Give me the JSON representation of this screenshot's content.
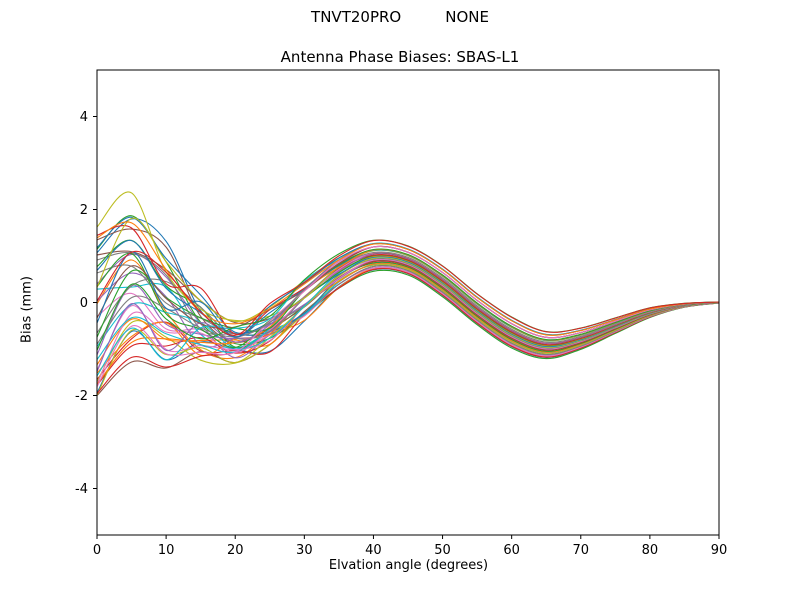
{
  "header": {
    "left": "TNVT20PRO",
    "right": "NONE"
  },
  "chart_data": {
    "type": "line",
    "title": "Antenna Phase Biases: SBAS-L1",
    "xlabel": "Elvation angle (degrees)",
    "ylabel": "Bias (mm)",
    "xlim": [
      0,
      90
    ],
    "ylim": [
      -5,
      5
    ],
    "xticks": [
      0,
      10,
      20,
      30,
      40,
      50,
      60,
      70,
      80,
      90
    ],
    "yticks": [
      -4,
      -2,
      0,
      2,
      4
    ],
    "grid": false,
    "legend": "none",
    "n_series": 44,
    "x": [
      0,
      5,
      10,
      15,
      20,
      25,
      30,
      35,
      40,
      45,
      50,
      55,
      60,
      65,
      70,
      75,
      80,
      85,
      90
    ],
    "ensemble_mean": [
      -0.5,
      0.4,
      -0.1,
      -0.55,
      -0.85,
      -0.55,
      0.05,
      0.65,
      1.0,
      0.9,
      0.45,
      -0.15,
      -0.65,
      -0.92,
      -0.78,
      -0.5,
      -0.22,
      -0.06,
      0.0
    ],
    "ensemble_spread": [
      1.8,
      1.5,
      1.1,
      0.8,
      0.45,
      0.45,
      0.4,
      0.35,
      0.32,
      0.3,
      0.32,
      0.32,
      0.32,
      0.28,
      0.22,
      0.16,
      0.1,
      0.04,
      0.01
    ],
    "ensemble_noise": [
      0.45,
      0.5,
      0.45,
      0.35,
      0.25,
      0.18,
      0.1,
      0.04,
      0,
      0,
      0,
      0,
      0,
      0,
      0,
      0,
      0,
      0,
      0
    ],
    "palette": [
      "#1f77b4",
      "#ff7f0e",
      "#2ca02c",
      "#d62728",
      "#9467bd",
      "#8c564b",
      "#e377c2",
      "#7f7f7f",
      "#bcbd22",
      "#17becf"
    ]
  }
}
